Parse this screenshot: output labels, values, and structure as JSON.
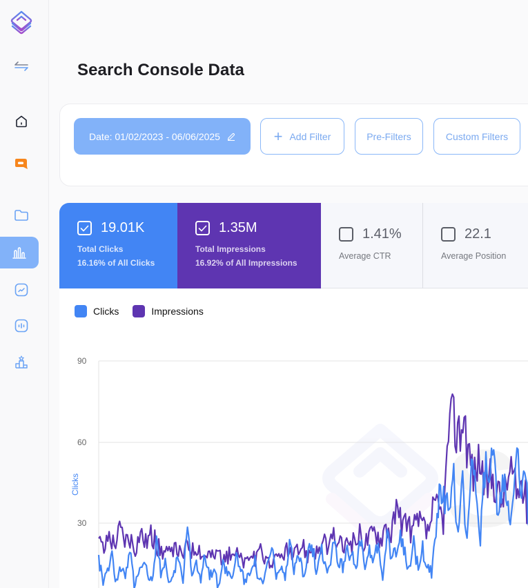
{
  "sidebar": {
    "items": [
      {
        "name": "logo",
        "icon": "layered-diamond-logo"
      },
      {
        "name": "toggle",
        "icon": "swap-arrows-icon"
      },
      {
        "name": "home",
        "icon": "home-icon"
      },
      {
        "name": "chat",
        "icon": "chat-bubble-icon"
      },
      {
        "name": "folder",
        "icon": "folder-icon"
      },
      {
        "name": "analytics",
        "icon": "bar-chart-icon",
        "active": true
      },
      {
        "name": "trends",
        "icon": "trend-line-icon"
      },
      {
        "name": "audio",
        "icon": "waveform-icon"
      },
      {
        "name": "ranking",
        "icon": "podium-icon"
      }
    ]
  },
  "header": {
    "title": "Search Console Data"
  },
  "filters": {
    "date_label": "Date: 01/02/2023 - 06/06/2025",
    "add_filter_label": "Add Filter",
    "pre_filters_label": "Pre-Filters",
    "custom_filters_label": "Custom Filters"
  },
  "metrics": {
    "clicks": {
      "value": "19.01K",
      "label": "Total Clicks",
      "sub": "16.16% of All Clicks",
      "checked": true,
      "color": "#4285f4"
    },
    "impressions": {
      "value": "1.35M",
      "label": "Total Impressions",
      "sub": "16.92% of All Impressions",
      "checked": true,
      "color": "#5e35b1"
    },
    "ctr": {
      "value": "1.41%",
      "label": "Average CTR",
      "checked": false
    },
    "position": {
      "value": "22.1",
      "label": "Average Position",
      "checked": false
    }
  },
  "chart": {
    "legend": [
      {
        "label": "Clicks",
        "color": "#4285f4"
      },
      {
        "label": "Impressions",
        "color": "#5e35b1"
      }
    ],
    "y_axis_title": "Clicks",
    "y_ticks": [
      "90",
      "60",
      "30"
    ]
  },
  "chart_data": {
    "type": "line",
    "title": "",
    "xlabel": "",
    "ylabel": "Clicks",
    "ylim": [
      0,
      90
    ],
    "y_ticks": [
      30,
      60,
      90
    ],
    "grid": true,
    "legend_position": "top-left",
    "x_range": "01/02/2023 - 06/06/2025 (daily, partially visible)",
    "series": [
      {
        "name": "Clicks",
        "color": "#4285f4",
        "approx_values": [
          17,
          8,
          12,
          18,
          9,
          14,
          10,
          20,
          6,
          13,
          16,
          12,
          8,
          22,
          10,
          15,
          7,
          12,
          18,
          9,
          30,
          11,
          14,
          8,
          20,
          10,
          13,
          6,
          16,
          12,
          9,
          18,
          14,
          8,
          12,
          17,
          10,
          7,
          15,
          20,
          11,
          13,
          9,
          22,
          12,
          18,
          10,
          16,
          24,
          13,
          20,
          15,
          12,
          26,
          16,
          14,
          22,
          18,
          12,
          25,
          13,
          19,
          16,
          22,
          10,
          24,
          17,
          20,
          28,
          18,
          14,
          22,
          12,
          20,
          16,
          11,
          28,
          45,
          38,
          32,
          47,
          28,
          50,
          22,
          55,
          36,
          25,
          52,
          42,
          60,
          30,
          46,
          40,
          35,
          58,
          42,
          48,
          30,
          55,
          40,
          34
        ]
      },
      {
        "name": "Impressions",
        "color": "#5e35b1",
        "approx_values": [
          24,
          20,
          26,
          22,
          28,
          24,
          25,
          21,
          27,
          23,
          26,
          22,
          20,
          19,
          18,
          21,
          17,
          23,
          20,
          22,
          18,
          19,
          17,
          20,
          16,
          18,
          20,
          17,
          15,
          18,
          16,
          19,
          17,
          15,
          16,
          18,
          20,
          17,
          19,
          22,
          18,
          21,
          19,
          23,
          20,
          25,
          22,
          21,
          24,
          22,
          26,
          23,
          25,
          28,
          24,
          30,
          26,
          35,
          28,
          32,
          27,
          30,
          29,
          26,
          34,
          36,
          31,
          65,
          68,
          63,
          70,
          55,
          48,
          55,
          42,
          47,
          45,
          38,
          44,
          50,
          40,
          45,
          36,
          33,
          30,
          35
        ]
      }
    ],
    "notes": "Values are visual estimates; a large spike occurs near the right end (~Jun 2025) with Impressions peaking around 70 and Clicks around 60 on the shared scale."
  }
}
